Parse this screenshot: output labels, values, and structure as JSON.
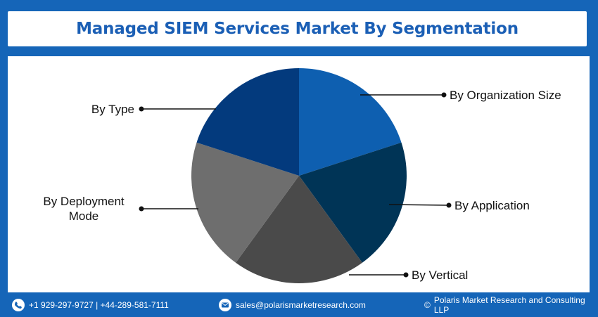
{
  "title": "Managed SIEM Services Market By Segmentation",
  "chart_data": {
    "type": "pie",
    "segments": [
      {
        "label": "By Organization Size",
        "value": 20,
        "color": "#0e5fb0"
      },
      {
        "label": "By Application",
        "value": 20,
        "color": "#003456"
      },
      {
        "label": "By Vertical",
        "value": 20,
        "color": "#4a4a4a"
      },
      {
        "label": "By Deployment Mode",
        "value": 20,
        "color": "#6e6e6e"
      },
      {
        "label": "By Type",
        "value": 20,
        "color": "#033a7d"
      }
    ]
  },
  "footer": {
    "phone": "+1 929-297-9727 | +44-289-581-7111",
    "email": "sales@polarismarketresearch.com",
    "copyright": "Polaris Market Research and Consulting LLP",
    "copyright_symbol": "©",
    "phone_icon": "phone-icon",
    "email_icon": "email-icon"
  }
}
